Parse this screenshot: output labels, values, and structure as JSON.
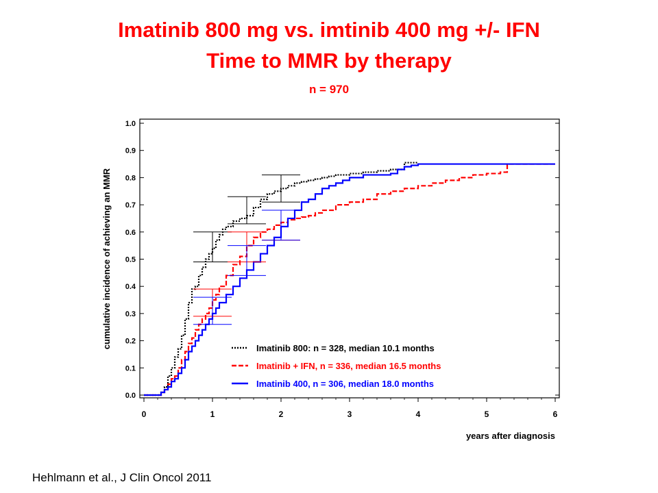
{
  "slide": {
    "title_line1": "Imatinib 800 mg vs. imtinib 400 mg +/- IFN",
    "title_line2": "Time to MMR by therapy",
    "subtitle": "n = 970",
    "citation": "Hehlmann et al., J Clin Oncol 2011"
  },
  "chart_data": {
    "type": "line",
    "xlabel": "years after diagnosis",
    "ylabel": "cumulative incidence of achieving an MMR",
    "xlim": [
      0,
      6
    ],
    "ylim": [
      0,
      1.0
    ],
    "xticks": [
      "0",
      "1",
      "2",
      "3",
      "4",
      "5",
      "6"
    ],
    "yticks": [
      "0.0",
      "0.1",
      "0.2",
      "0.3",
      "0.4",
      "0.5",
      "0.6",
      "0.7",
      "0.8",
      "0.9",
      "1.0"
    ],
    "grid": false,
    "legend_position": "bottom-right",
    "series": [
      {
        "name": "Imatinib 800: n = 328, median 10.1 months",
        "color": "#000000",
        "style": "dotted",
        "x": [
          0,
          0.25,
          0.3,
          0.35,
          0.4,
          0.45,
          0.5,
          0.55,
          0.6,
          0.65,
          0.7,
          0.75,
          0.8,
          0.85,
          0.9,
          0.95,
          1.0,
          1.05,
          1.1,
          1.15,
          1.2,
          1.3,
          1.4,
          1.5,
          1.6,
          1.7,
          1.8,
          1.9,
          2.0,
          2.1,
          2.2,
          2.3,
          2.4,
          2.5,
          2.6,
          2.7,
          2.8,
          3.0,
          3.2,
          3.4,
          3.6,
          3.8,
          4.0
        ],
        "y": [
          0,
          0.01,
          0.03,
          0.07,
          0.1,
          0.14,
          0.17,
          0.22,
          0.28,
          0.34,
          0.39,
          0.4,
          0.44,
          0.47,
          0.5,
          0.52,
          0.54,
          0.57,
          0.59,
          0.61,
          0.62,
          0.64,
          0.65,
          0.66,
          0.69,
          0.72,
          0.74,
          0.75,
          0.76,
          0.77,
          0.78,
          0.785,
          0.79,
          0.795,
          0.8,
          0.805,
          0.81,
          0.815,
          0.82,
          0.825,
          0.83,
          0.855,
          0.855
        ]
      },
      {
        "name": "Imatinib + IFN, n = 336, median 16.5 months",
        "color": "#ff0000",
        "style": "dashed",
        "x": [
          0,
          0.25,
          0.3,
          0.35,
          0.4,
          0.45,
          0.5,
          0.55,
          0.6,
          0.65,
          0.7,
          0.75,
          0.8,
          0.85,
          0.9,
          0.95,
          1.0,
          1.05,
          1.1,
          1.2,
          1.3,
          1.4,
          1.5,
          1.6,
          1.7,
          1.8,
          1.9,
          2.0,
          2.1,
          2.2,
          2.3,
          2.4,
          2.5,
          2.6,
          2.8,
          3.0,
          3.2,
          3.4,
          3.6,
          3.8,
          4.0,
          4.2,
          4.4,
          4.6,
          4.8,
          5.0,
          5.2,
          5.3,
          6.0
        ],
        "y": [
          0,
          0.01,
          0.02,
          0.04,
          0.06,
          0.07,
          0.1,
          0.13,
          0.16,
          0.19,
          0.21,
          0.24,
          0.26,
          0.28,
          0.3,
          0.32,
          0.35,
          0.37,
          0.4,
          0.44,
          0.48,
          0.51,
          0.55,
          0.58,
          0.6,
          0.61,
          0.625,
          0.635,
          0.645,
          0.65,
          0.655,
          0.66,
          0.67,
          0.68,
          0.7,
          0.71,
          0.72,
          0.74,
          0.75,
          0.76,
          0.77,
          0.78,
          0.79,
          0.8,
          0.81,
          0.815,
          0.82,
          0.85,
          0.85
        ]
      },
      {
        "name": "Imatinib 400, n = 306, median 18.0 months",
        "color": "#0000ff",
        "style": "solid",
        "x": [
          0,
          0.25,
          0.3,
          0.35,
          0.4,
          0.45,
          0.5,
          0.55,
          0.6,
          0.65,
          0.7,
          0.75,
          0.8,
          0.85,
          0.9,
          0.95,
          1.0,
          1.05,
          1.1,
          1.2,
          1.3,
          1.4,
          1.5,
          1.6,
          1.7,
          1.8,
          1.9,
          2.0,
          2.1,
          2.2,
          2.3,
          2.4,
          2.5,
          2.6,
          2.7,
          2.8,
          2.9,
          3.0,
          3.2,
          3.4,
          3.6,
          3.7,
          3.8,
          3.9,
          4.0,
          4.2,
          5.0,
          6.0
        ],
        "y": [
          0,
          0.01,
          0.02,
          0.03,
          0.05,
          0.06,
          0.08,
          0.1,
          0.13,
          0.16,
          0.18,
          0.2,
          0.22,
          0.24,
          0.26,
          0.28,
          0.3,
          0.32,
          0.34,
          0.37,
          0.4,
          0.43,
          0.46,
          0.49,
          0.52,
          0.55,
          0.58,
          0.62,
          0.65,
          0.68,
          0.71,
          0.72,
          0.74,
          0.76,
          0.77,
          0.78,
          0.79,
          0.8,
          0.81,
          0.81,
          0.815,
          0.83,
          0.84,
          0.845,
          0.85,
          0.85,
          0.85,
          0.85
        ]
      }
    ],
    "error_bars": [
      {
        "series": 0,
        "x": 1.0,
        "lo": 0.49,
        "hi": 0.6
      },
      {
        "series": 0,
        "x": 1.5,
        "lo": 0.63,
        "hi": 0.73
      },
      {
        "series": 0,
        "x": 2.0,
        "lo": 0.71,
        "hi": 0.81
      },
      {
        "series": 1,
        "x": 1.0,
        "lo": 0.29,
        "hi": 0.39
      },
      {
        "series": 1,
        "x": 1.5,
        "lo": 0.49,
        "hi": 0.6
      },
      {
        "series": 1,
        "x": 2.0,
        "lo": 0.57,
        "hi": 0.68
      },
      {
        "series": 2,
        "x": 1.0,
        "lo": 0.26,
        "hi": 0.36
      },
      {
        "series": 2,
        "x": 1.5,
        "lo": 0.44,
        "hi": 0.55
      },
      {
        "series": 2,
        "x": 2.0,
        "lo": 0.57,
        "hi": 0.68
      }
    ]
  }
}
